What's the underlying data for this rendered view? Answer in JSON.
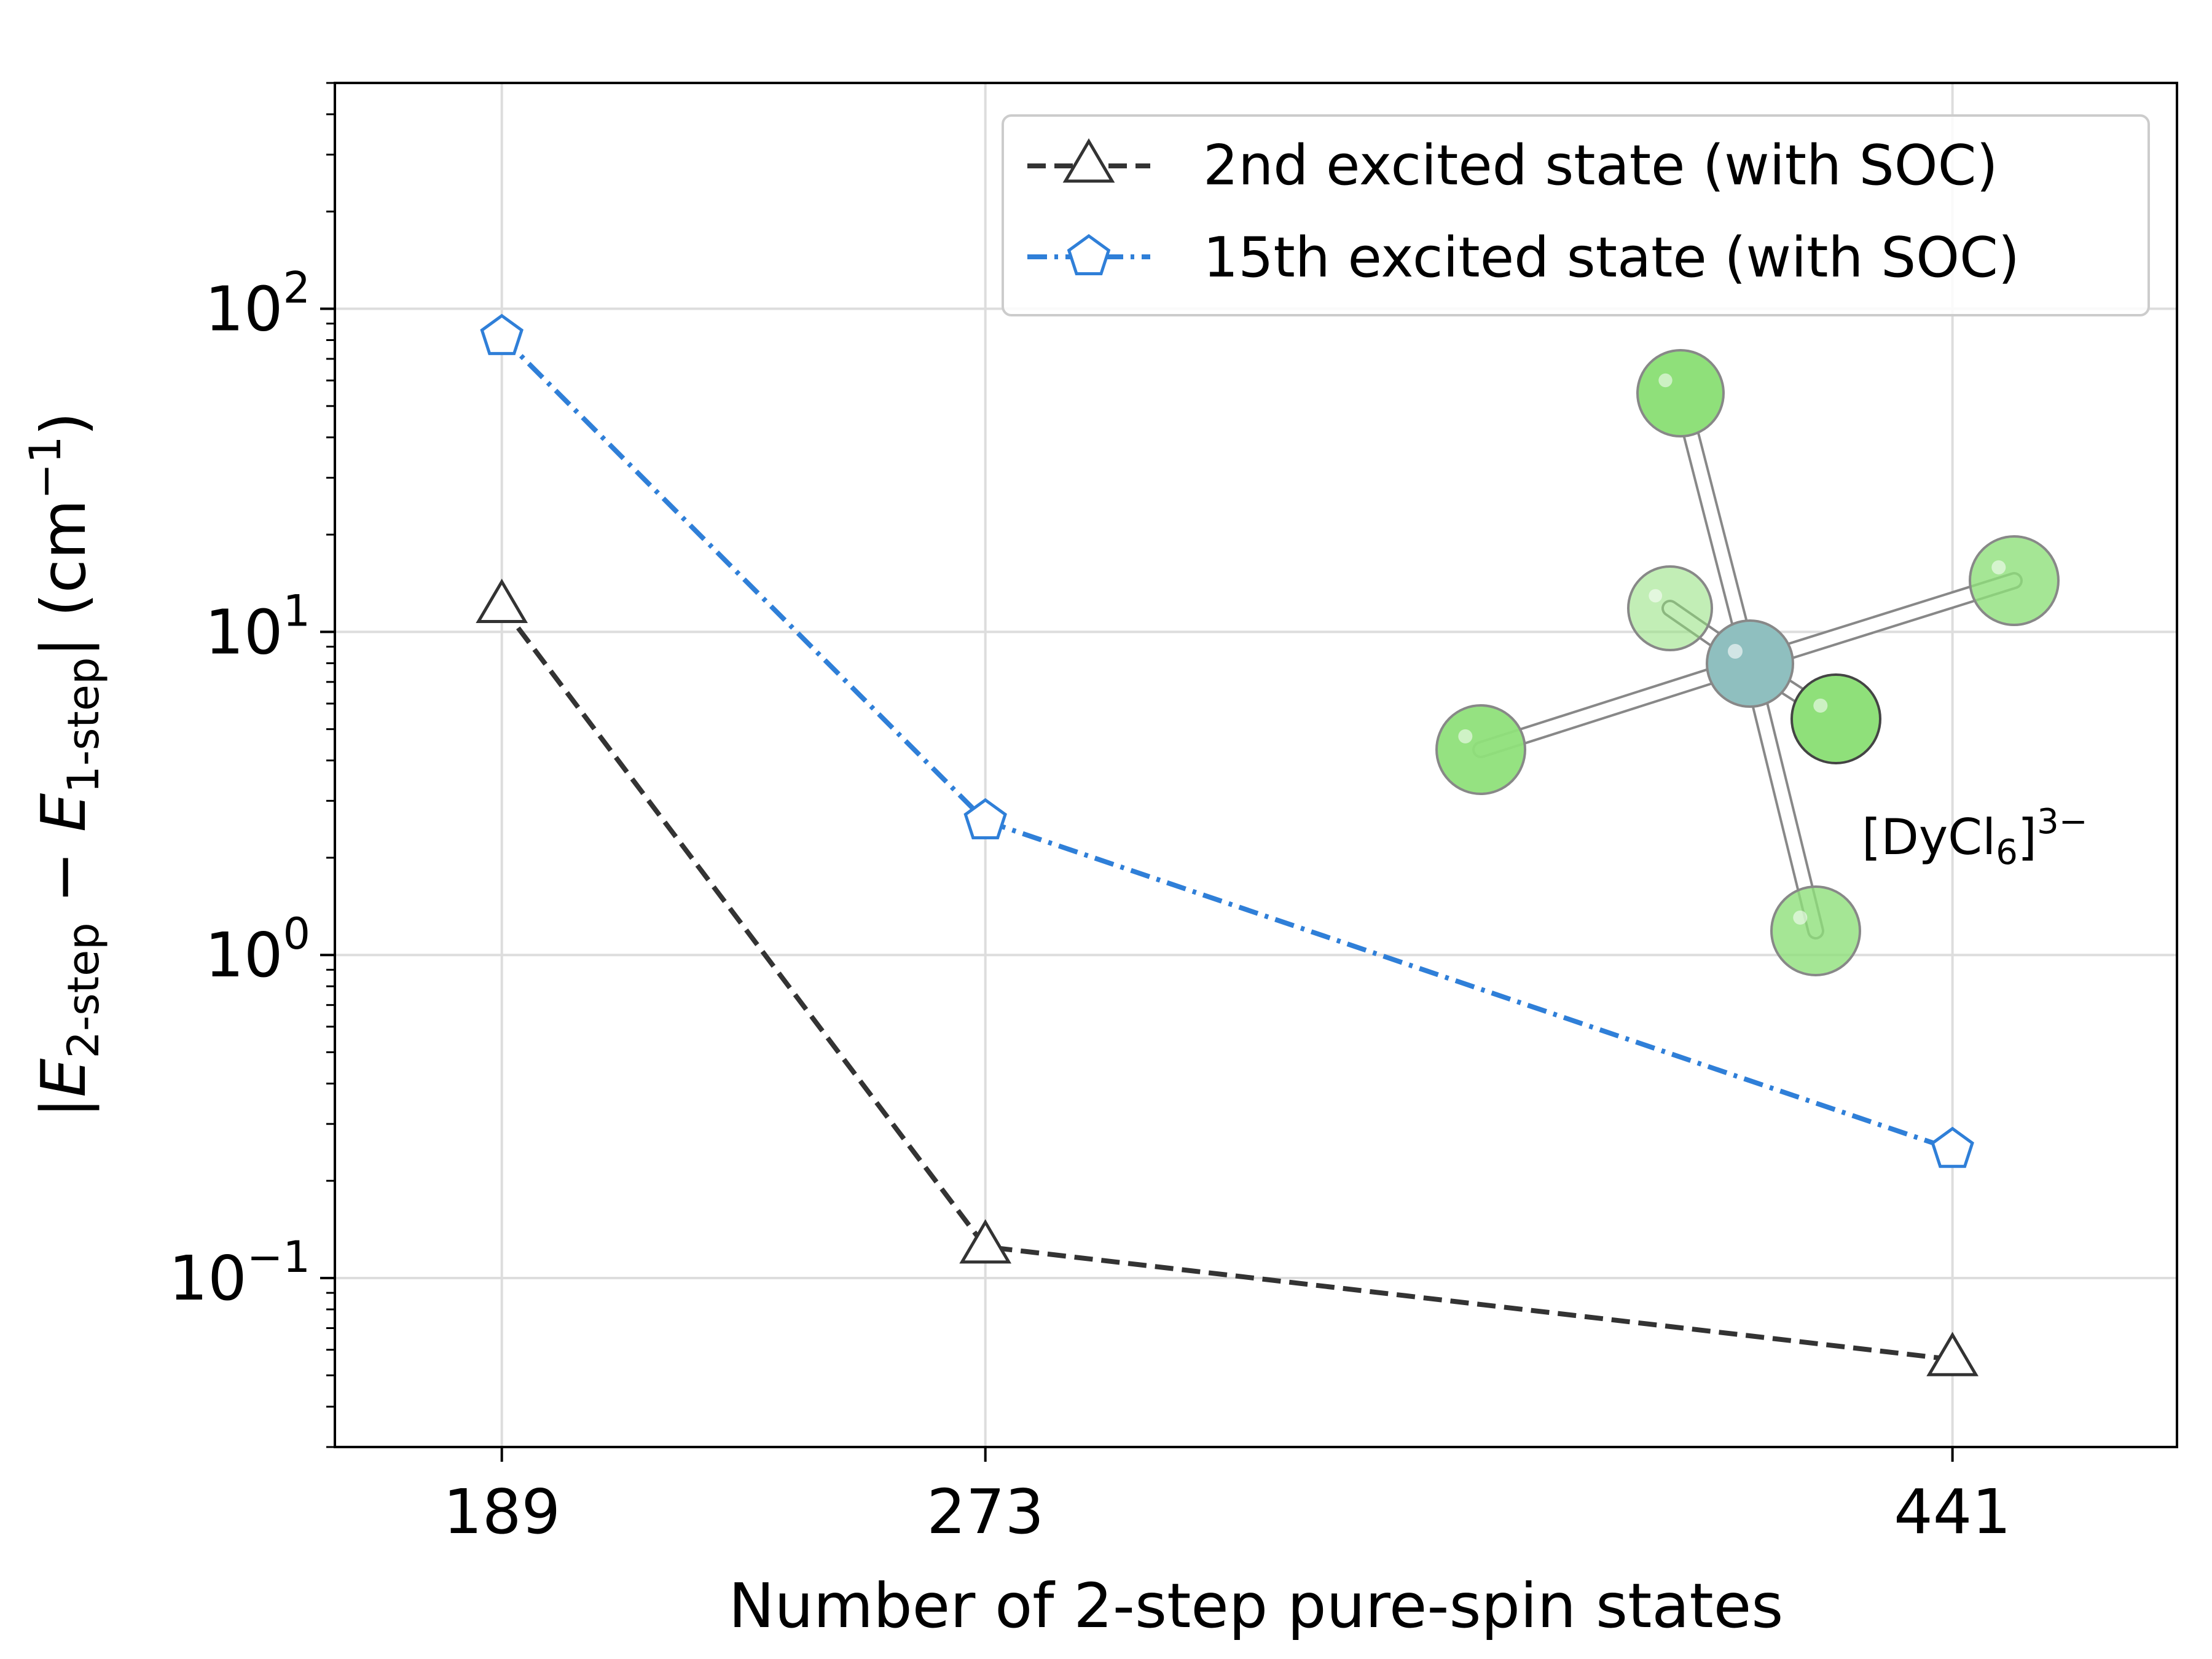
{
  "chart_data": {
    "type": "line",
    "xlabel": "Number of 2-step pure-spin states",
    "ylabel": {
      "bar_open": "|",
      "e1": "E",
      "sub1": "2-step",
      "minus": " − ",
      "e2": "E",
      "sub2": "1-step",
      "bar_close": "|",
      "unit_open": "  (cm",
      "unit_sup": "−1",
      "unit_close": ")"
    },
    "x_ticks": [
      {
        "value": 189,
        "label": "189"
      },
      {
        "value": 273,
        "label": "273"
      },
      {
        "value": 441,
        "label": "441"
      }
    ],
    "xlim": [
      160,
      480
    ],
    "y_scale": "log",
    "ylim": [
      0.03,
      500
    ],
    "y_ticks": [
      {
        "value": 0.1,
        "base": "10",
        "exp": "−1"
      },
      {
        "value": 1,
        "base": "10",
        "exp": "0"
      },
      {
        "value": 10,
        "base": "10",
        "exp": "1"
      },
      {
        "value": 100,
        "base": "10",
        "exp": "2"
      }
    ],
    "grid": true,
    "legend_position": "top-right",
    "series": [
      {
        "name": "2nd excited state (with SOC)",
        "marker": "triangle",
        "line_style": "dashed",
        "color": "#333333",
        "x": [
          189,
          273,
          441
        ],
        "y": [
          12,
          0.125,
          0.056
        ]
      },
      {
        "name": "15th excited state (with SOC)",
        "marker": "pentagon",
        "line_style": "dashdot",
        "color": "#2f7fd8",
        "x": [
          189,
          273,
          441
        ],
        "y": [
          82,
          2.6,
          0.25
        ]
      }
    ],
    "annotation": {
      "prefix": "[DyCl",
      "sub": "6",
      "suffix": "]",
      "sup": "3−"
    },
    "colors": {
      "center_atom": "#8fbfbf",
      "ligand_atom": "#8fe07a"
    }
  }
}
